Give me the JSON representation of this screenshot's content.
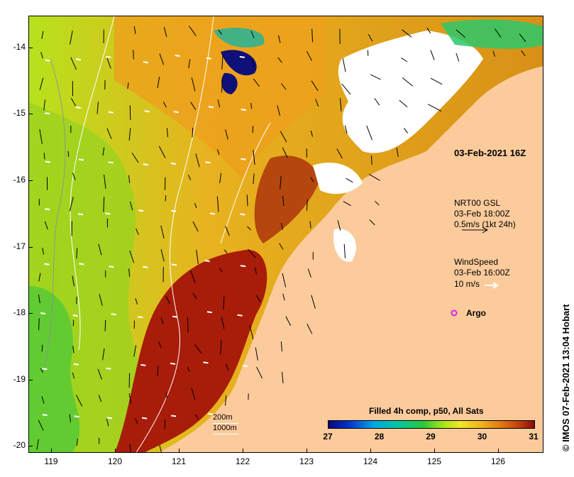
{
  "map": {
    "product_title": "Filled 4h comp, p50, All Sats",
    "credit": "© IMOS 07-Feb-2021 13:04 Hobart",
    "timestamp": "03-Feb-2021 16Z",
    "legend_current": {
      "title": "NRT00 GSL",
      "time": "03-Feb 18:00Z",
      "scale": "0.5m/s (1kt 24h)"
    },
    "legend_wind": {
      "title": "WindSpeed",
      "time": "03-Feb 16:00Z",
      "scale": "10 m/s"
    },
    "legend_argo": {
      "label": "Argo",
      "marker_color": "#e020e0"
    },
    "bathymetry": {
      "contour_1": "200m",
      "contour_2": "1000m"
    },
    "x_ticks": [
      "119",
      "120",
      "121",
      "122",
      "123",
      "124",
      "125",
      "126"
    ],
    "y_ticks": [
      "-14",
      "-15",
      "-16",
      "-17",
      "-18",
      "-19",
      "-20"
    ],
    "colorbar": {
      "ticks": [
        "27",
        "28",
        "29",
        "30",
        "31"
      ],
      "min": 27,
      "max": 31
    },
    "colors": {
      "land": "#fbcb9c",
      "cloud": "#ffffff",
      "warm": "#8c0a0a",
      "cool": "#0a0a7a"
    }
  }
}
